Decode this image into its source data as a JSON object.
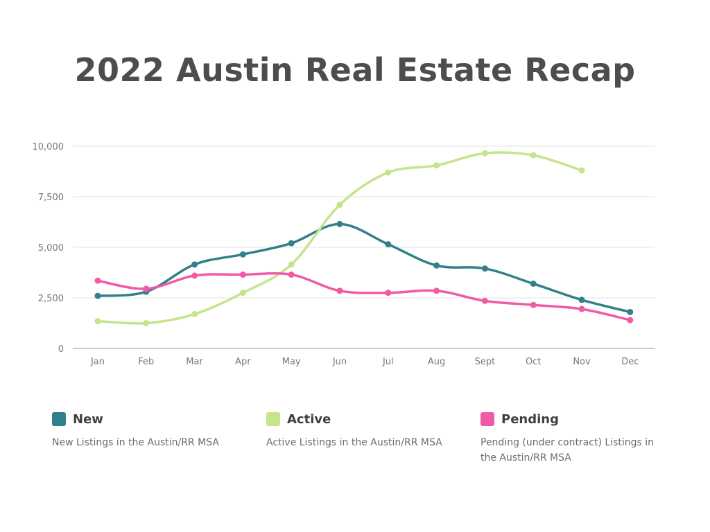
{
  "title": "2022 Austin Real Estate Recap",
  "colors": {
    "new": "#31808c",
    "active": "#c6e48b",
    "pending": "#f05aa6",
    "grid": "#e3e3e3",
    "axis": "#999999"
  },
  "legend": [
    {
      "name": "New",
      "description": "New Listings in the Austin/RR MSA",
      "color": "#31808c"
    },
    {
      "name": "Active",
      "description": "Active Listings in the Austin/RR MSA",
      "color": "#c6e48b"
    },
    {
      "name": "Pending",
      "description": "Pending (under contract) Listings in the Austin/RR MSA",
      "color": "#f05aa6"
    }
  ],
  "chart_data": {
    "type": "line",
    "title": "2022 Austin Real Estate Recap",
    "xlabel": "",
    "ylabel": "",
    "categories": [
      "Jan",
      "Feb",
      "Mar",
      "Apr",
      "May",
      "Jun",
      "Jul",
      "Aug",
      "Sept",
      "Oct",
      "Nov",
      "Dec"
    ],
    "ylim": [
      0,
      10000
    ],
    "yticks": [
      0,
      2500,
      5000,
      7500,
      10000
    ],
    "ytick_labels": [
      "0",
      "2,500",
      "5,000",
      "7,500",
      "10,000"
    ],
    "grid": true,
    "legend_position": "bottom",
    "series": [
      {
        "name": "New",
        "color": "#31808c",
        "values": [
          2600,
          2800,
          4150,
          4650,
          5200,
          6150,
          5150,
          4100,
          3950,
          3200,
          2400,
          1800
        ]
      },
      {
        "name": "Active",
        "color": "#c6e48b",
        "values": [
          1350,
          1250,
          1700,
          2750,
          4150,
          7100,
          8700,
          9050,
          9650,
          9550,
          8800,
          null
        ]
      },
      {
        "name": "Pending",
        "color": "#f05aa6",
        "values": [
          3350,
          2950,
          3600,
          3650,
          3650,
          2850,
          2750,
          2850,
          2350,
          2150,
          1950,
          1400
        ]
      }
    ]
  }
}
